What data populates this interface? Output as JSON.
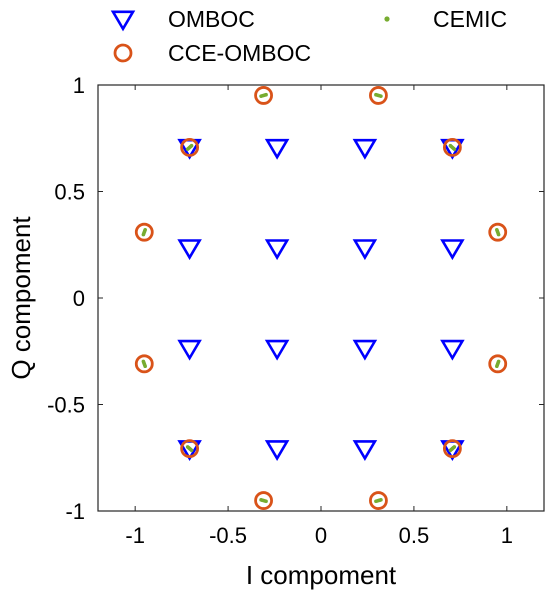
{
  "chart_data": {
    "type": "scatter",
    "title": "",
    "xlabel": "I compoment",
    "ylabel": "Q compoment",
    "xlim": [
      -1.2,
      1.2
    ],
    "ylim": [
      -1,
      1
    ],
    "xticks": [
      -1,
      -0.5,
      0,
      0.5,
      1
    ],
    "xtick_labels": [
      "-1",
      "-0.5",
      "0",
      "0.5",
      "1"
    ],
    "yticks": [
      -1,
      -0.5,
      0,
      0.5,
      1
    ],
    "ytick_labels": [
      "-1",
      "-0.5",
      "0",
      "0.5",
      "1"
    ],
    "grid": false,
    "legend_position": "top (outside, above plot)",
    "series": [
      {
        "name": "OMBOC",
        "marker": "triangle-down",
        "color": "#0000ff",
        "points": [
          [
            -0.707,
            0.707
          ],
          [
            -0.236,
            0.707
          ],
          [
            0.236,
            0.707
          ],
          [
            0.707,
            0.707
          ],
          [
            -0.707,
            0.236
          ],
          [
            -0.236,
            0.236
          ],
          [
            0.236,
            0.236
          ],
          [
            0.707,
            0.236
          ],
          [
            -0.707,
            -0.236
          ],
          [
            -0.236,
            -0.236
          ],
          [
            0.236,
            -0.236
          ],
          [
            0.707,
            -0.236
          ],
          [
            -0.707,
            -0.707
          ],
          [
            -0.236,
            -0.707
          ],
          [
            0.236,
            -0.707
          ],
          [
            0.707,
            -0.707
          ]
        ]
      },
      {
        "name": "CCE-OMBOC",
        "marker": "circle",
        "color": "#d95319",
        "points": [
          [
            -0.309,
            0.951
          ],
          [
            0.309,
            0.951
          ],
          [
            -0.707,
            0.707
          ],
          [
            0.707,
            0.707
          ],
          [
            -0.951,
            0.309
          ],
          [
            0.951,
            0.309
          ],
          [
            -0.951,
            -0.309
          ],
          [
            0.951,
            -0.309
          ],
          [
            -0.707,
            -0.707
          ],
          [
            0.707,
            -0.707
          ],
          [
            -0.309,
            -0.951
          ],
          [
            0.309,
            -0.951
          ]
        ]
      },
      {
        "name": "CEMIC",
        "marker": "dot",
        "color": "#77ac30",
        "points": [
          [
            -0.309,
            0.951
          ],
          [
            0.309,
            0.951
          ],
          [
            -0.707,
            0.707
          ],
          [
            0.707,
            0.707
          ],
          [
            -0.951,
            0.309
          ],
          [
            0.951,
            0.309
          ],
          [
            -0.951,
            -0.309
          ],
          [
            0.951,
            -0.309
          ],
          [
            -0.707,
            -0.707
          ],
          [
            0.707,
            -0.707
          ],
          [
            -0.309,
            -0.951
          ],
          [
            0.309,
            -0.951
          ]
        ]
      }
    ]
  }
}
